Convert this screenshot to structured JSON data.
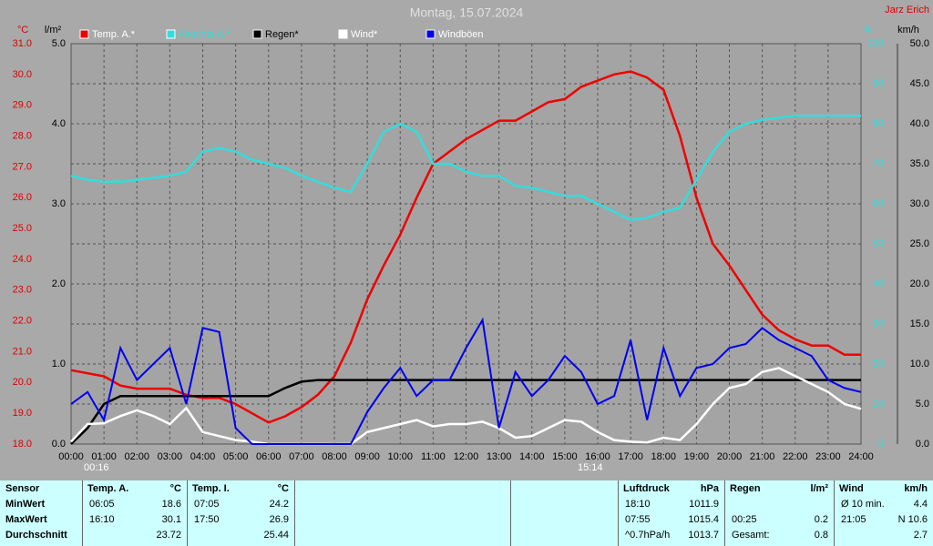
{
  "chart_data": {
    "type": "line",
    "title": "Montag, 15.07.2024",
    "owner": "Jarz Erich",
    "y_label": "°C",
    "y2_label": "l/m²",
    "y3_label": "%",
    "y4_label": "km/h",
    "annotations": [
      "00:16",
      "15:14"
    ],
    "grid": true,
    "xlim": [
      0,
      24
    ],
    "xticks": [
      {
        "value": 0,
        "label": "00:00"
      },
      {
        "value": 1,
        "label": "01:00"
      },
      {
        "value": 2,
        "label": "02:00"
      },
      {
        "value": 3,
        "label": "03:00"
      },
      {
        "value": 4,
        "label": "04:00"
      },
      {
        "value": 5,
        "label": "05:00"
      },
      {
        "value": 6,
        "label": "06:00"
      },
      {
        "value": 7,
        "label": "07:00"
      },
      {
        "value": 8,
        "label": "08:00"
      },
      {
        "value": 9,
        "label": "09:00"
      },
      {
        "value": 10,
        "label": "10:00"
      },
      {
        "value": 11,
        "label": "11:00"
      },
      {
        "value": 12,
        "label": "12:00"
      },
      {
        "value": 13,
        "label": "13:00"
      },
      {
        "value": 14,
        "label": "14:00"
      },
      {
        "value": 15,
        "label": "15:00"
      },
      {
        "value": 16,
        "label": "16:00"
      },
      {
        "value": 17,
        "label": "17:00"
      },
      {
        "value": 18,
        "label": "18:00"
      },
      {
        "value": 19,
        "label": "19:00"
      },
      {
        "value": 20,
        "label": "20:00"
      },
      {
        "value": 21,
        "label": "21:00"
      },
      {
        "value": 22,
        "label": "22:00"
      },
      {
        "value": 23,
        "label": "23:00"
      },
      {
        "value": 24,
        "label": "24:00"
      }
    ],
    "ylim": [
      18,
      31
    ],
    "yticks": [
      {
        "value": 18,
        "label": "18.0"
      },
      {
        "value": 19,
        "label": "19.0"
      },
      {
        "value": 20,
        "label": "20.0"
      },
      {
        "value": 21,
        "label": "21.0"
      },
      {
        "value": 22,
        "label": "22.0"
      },
      {
        "value": 23,
        "label": "23.0"
      },
      {
        "value": 24,
        "label": "24.0"
      },
      {
        "value": 25,
        "label": "25.0"
      },
      {
        "value": 26,
        "label": "26.0"
      },
      {
        "value": 27,
        "label": "27.0"
      },
      {
        "value": 28,
        "label": "28.0"
      },
      {
        "value": 29,
        "label": "29.0"
      },
      {
        "value": 30,
        "label": "30.0"
      },
      {
        "value": 31,
        "label": "31.0"
      }
    ],
    "y2lim": [
      0,
      5
    ],
    "y2ticks": [
      {
        "value": 0,
        "label": "0.0"
      },
      {
        "value": 1,
        "label": "1.0"
      },
      {
        "value": 2,
        "label": "2.0"
      },
      {
        "value": 3,
        "label": "3.0"
      },
      {
        "value": 4,
        "label": "4.0"
      },
      {
        "value": 5,
        "label": "5.0"
      }
    ],
    "y3lim": [
      0,
      100
    ],
    "y3ticks": [
      0,
      10,
      20,
      30,
      40,
      50,
      60,
      70,
      80,
      90,
      100
    ],
    "y4lim": [
      0,
      50
    ],
    "y4ticks": [
      {
        "value": 0,
        "label": "0.0"
      },
      {
        "value": 5,
        "label": "5.0"
      },
      {
        "value": 10,
        "label": "10.0"
      },
      {
        "value": 15,
        "label": "15.0"
      },
      {
        "value": 20,
        "label": "20.0"
      },
      {
        "value": 25,
        "label": "25.0"
      },
      {
        "value": 30,
        "label": "30.0"
      },
      {
        "value": 35,
        "label": "35.0"
      },
      {
        "value": 40,
        "label": "40.0"
      },
      {
        "value": 45,
        "label": "45.0"
      },
      {
        "value": 50,
        "label": "50.0"
      }
    ],
    "x": [
      0,
      0.5,
      1,
      1.5,
      2,
      2.5,
      3,
      3.5,
      4,
      4.5,
      5,
      5.5,
      6,
      6.5,
      7,
      7.5,
      8,
      8.5,
      9,
      9.5,
      10,
      10.5,
      11,
      11.5,
      12,
      12.5,
      13,
      13.5,
      14,
      14.5,
      15,
      15.5,
      16,
      16.5,
      17,
      17.5,
      18,
      18.5,
      19,
      19.5,
      20,
      20.5,
      21,
      21.5,
      22,
      22.5,
      23,
      23.5,
      24
    ],
    "series": [
      {
        "name": "Temp. A.*",
        "color": "#ee0000",
        "axis": "y",
        "values": [
          20.4,
          20.3,
          20.2,
          19.9,
          19.8,
          19.8,
          19.8,
          19.6,
          19.5,
          19.5,
          19.3,
          19.0,
          18.7,
          18.9,
          19.2,
          19.6,
          20.2,
          21.3,
          22.7,
          23.8,
          24.8,
          26.0,
          27.1,
          27.5,
          27.9,
          28.2,
          28.5,
          28.5,
          28.8,
          29.1,
          29.2,
          29.6,
          29.8,
          30.0,
          30.1,
          29.9,
          29.5,
          28.0,
          26.0,
          24.5,
          23.8,
          23.0,
          22.2,
          21.7,
          21.4,
          21.2,
          21.2,
          20.9,
          20.9
        ]
      },
      {
        "name": "Feuchte A.*",
        "color": "#33dddd",
        "axis": "y3",
        "values": [
          67,
          66,
          65.5,
          65.5,
          66,
          66.5,
          67,
          68,
          73,
          74,
          73,
          71,
          70,
          69,
          67,
          65.5,
          64,
          63,
          70,
          78,
          80,
          78,
          70,
          70,
          68,
          67,
          67,
          64.5,
          64,
          63,
          62,
          62,
          60,
          58,
          56,
          56.5,
          58,
          59,
          66,
          73,
          78,
          80,
          81,
          81.5,
          82,
          82,
          82,
          82,
          82
        ]
      },
      {
        "name": "Regen*",
        "color": "#000000",
        "axis": "y2",
        "values": [
          0,
          0.2,
          0.5,
          0.6,
          0.6,
          0.6,
          0.6,
          0.6,
          0.6,
          0.6,
          0.6,
          0.6,
          0.6,
          0.7,
          0.78,
          0.8,
          0.8,
          0.8,
          0.8,
          0.8,
          0.8,
          0.8,
          0.8,
          0.8,
          0.8,
          0.8,
          0.8,
          0.8,
          0.8,
          0.8,
          0.8,
          0.8,
          0.8,
          0.8,
          0.8,
          0.8,
          0.8,
          0.8,
          0.8,
          0.8,
          0.8,
          0.8,
          0.8,
          0.8,
          0.8,
          0.8,
          0.8,
          0.8,
          0.8
        ]
      },
      {
        "name": "Wind*",
        "color": "#ffffff",
        "axis": "y4",
        "values": [
          0.3,
          2.5,
          2.6,
          3.5,
          4.2,
          3.5,
          2.5,
          4.5,
          1.5,
          1.0,
          0.5,
          0.3,
          0,
          0,
          0,
          0,
          0,
          0,
          1.5,
          2.0,
          2.5,
          3.0,
          2.2,
          2.5,
          2.5,
          2.8,
          2.0,
          0.8,
          1.0,
          2.0,
          3.0,
          2.8,
          1.5,
          0.5,
          0.3,
          0.2,
          0.8,
          0.5,
          2.5,
          5.0,
          7.0,
          7.5,
          9.0,
          9.5,
          8.5,
          7.5,
          6.5,
          5.0,
          4.4
        ]
      },
      {
        "name": "Windböen",
        "color": "#0000ee",
        "axis": "y4",
        "values": [
          5,
          6.5,
          3,
          12,
          8,
          10,
          12,
          5,
          14.5,
          14,
          2,
          0,
          0,
          0,
          0,
          0,
          0,
          0,
          4,
          7,
          9.5,
          6,
          8,
          8,
          12,
          15.5,
          2,
          9,
          6,
          8,
          11,
          9,
          5,
          6,
          13,
          3,
          12,
          6,
          9.5,
          10,
          12,
          12.5,
          14.5,
          13,
          12,
          11,
          8,
          7,
          6.5
        ]
      }
    ]
  },
  "table": {
    "row_labels": [
      "Sensor",
      "MinWert",
      "MaxWert",
      "Durchschnitt"
    ],
    "groups": [
      {
        "name": "Temp. A.",
        "unit": "°C",
        "min": {
          "time": "06:05",
          "value": 18.6
        },
        "max": {
          "time": "16:10",
          "value": 30.1
        },
        "avg": {
          "value": 23.72
        }
      },
      {
        "name": "Temp. I.",
        "unit": "°C",
        "min": {
          "time": "07:05",
          "value": 24.2
        },
        "max": {
          "time": "17:50",
          "value": 26.9
        },
        "avg": {
          "value": 25.44
        }
      },
      {
        "name": "Luftdruck",
        "unit": "hPa",
        "min": {
          "time": "18:10",
          "value": 1011.9
        },
        "max": {
          "time": "07:55",
          "value": 1015.4
        },
        "avg": {
          "time": "^0.7hPa/h",
          "value": 1013.7
        }
      },
      {
        "name": "Regen",
        "unit": "l/m²",
        "max": {
          "time": "00:25",
          "value": 0.2
        },
        "avg": {
          "time": "Gesamt:",
          "value": 0.8
        }
      },
      {
        "name": "Wind",
        "unit": "km/h",
        "min": {
          "time": "Ø 10 min.",
          "value": 4.4
        },
        "max": {
          "time": "21:05",
          "value": "N 10.6"
        },
        "avg": {
          "value": 2.7
        }
      }
    ]
  }
}
